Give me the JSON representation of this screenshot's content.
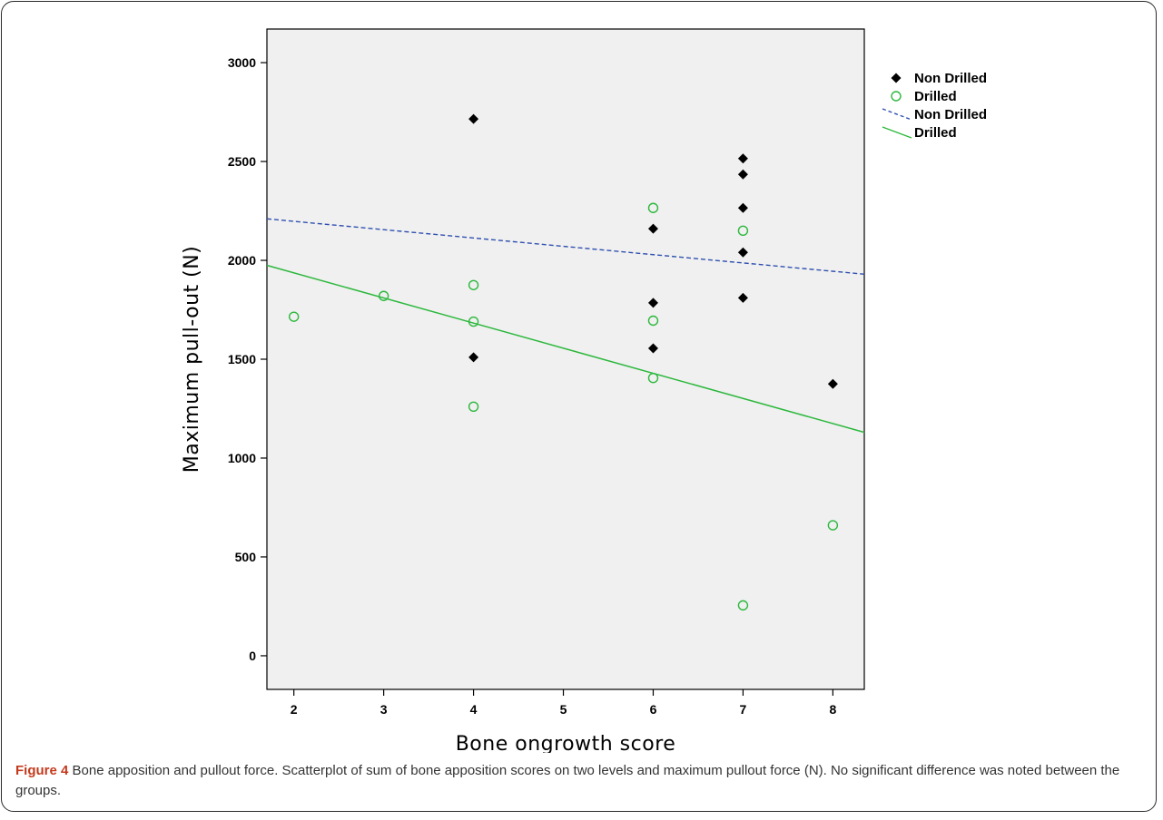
{
  "caption": {
    "label": "Figure 4",
    "text": " Bone apposition and pullout force. Scatterplot of sum of bone apposition scores on two levels and maximum pullout force (N). No significant difference was noted between the groups."
  },
  "chart_data": {
    "type": "scatter",
    "title": "",
    "xlabel": "Bone ongrowth score",
    "ylabel": "Maximum pull-out (N)",
    "xlim": [
      1.7,
      8.35
    ],
    "ylim": [
      -170,
      3170
    ],
    "xticks": [
      2,
      3,
      4,
      5,
      6,
      7,
      8
    ],
    "yticks": [
      0,
      500,
      1000,
      1500,
      2000,
      2500,
      3000
    ],
    "grid": false,
    "legend_position": "right",
    "series": [
      {
        "name": "Non Drilled",
        "marker": "filled-diamond",
        "color": "#000000",
        "points": [
          {
            "x": 4,
            "y": 2715
          },
          {
            "x": 4,
            "y": 1510
          },
          {
            "x": 6,
            "y": 2160
          },
          {
            "x": 6,
            "y": 1785
          },
          {
            "x": 6,
            "y": 1555
          },
          {
            "x": 7,
            "y": 2515
          },
          {
            "x": 7,
            "y": 2435
          },
          {
            "x": 7,
            "y": 2265
          },
          {
            "x": 7,
            "y": 2040
          },
          {
            "x": 7,
            "y": 1810
          },
          {
            "x": 8,
            "y": 1375
          }
        ]
      },
      {
        "name": "Drilled",
        "marker": "open-circle",
        "color": "#2db83d",
        "points": [
          {
            "x": 2,
            "y": 1715
          },
          {
            "x": 3,
            "y": 1820
          },
          {
            "x": 4,
            "y": 1875
          },
          {
            "x": 4,
            "y": 1690
          },
          {
            "x": 4,
            "y": 1260
          },
          {
            "x": 6,
            "y": 2265
          },
          {
            "x": 6,
            "y": 1695
          },
          {
            "x": 6,
            "y": 1405
          },
          {
            "x": 7,
            "y": 2150
          },
          {
            "x": 7,
            "y": 255
          },
          {
            "x": 8,
            "y": 660
          }
        ]
      }
    ],
    "fit_lines": [
      {
        "name": "Non Drilled",
        "style": "dashed",
        "color": "#3050b0",
        "from": {
          "x": 1.7,
          "y": 2210
        },
        "to": {
          "x": 8.35,
          "y": 1930
        }
      },
      {
        "name": "Drilled",
        "style": "solid",
        "color": "#2db83d",
        "from": {
          "x": 1.7,
          "y": 1975
        },
        "to": {
          "x": 8.35,
          "y": 1130
        }
      }
    ],
    "colors": {
      "plot_background": "#f0f0f0",
      "caption_label": "#c43a1d"
    }
  }
}
